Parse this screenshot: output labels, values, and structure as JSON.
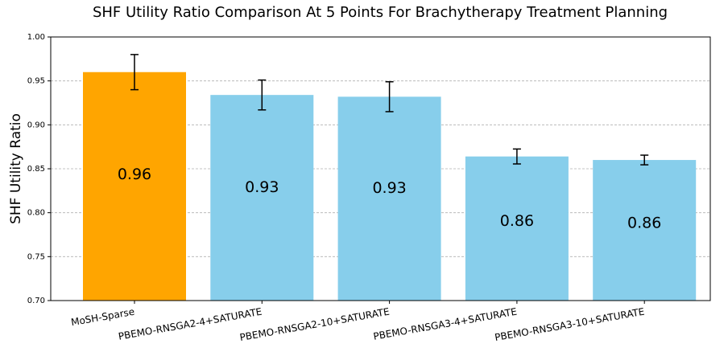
{
  "chart_data": {
    "type": "bar",
    "title": "SHF Utility Ratio Comparison At 5 Points For Brachytherapy Treatment Planning",
    "ylabel": "SHF Utility Ratio",
    "categories": [
      "MoSH-Sparse",
      "PBEMO-RNSGA2-4+SATURATE",
      "PBEMO-RNSGA2-10+SATURATE",
      "PBEMO-RNSGA3-4+SATURATE",
      "PBEMO-RNSGA3-10+SATURATE"
    ],
    "values": [
      0.96,
      0.934,
      0.932,
      0.864,
      0.86
    ],
    "value_labels": [
      "0.96",
      "0.93",
      "0.93",
      "0.86",
      "0.86"
    ],
    "errors": [
      0.02,
      0.017,
      0.017,
      0.0085,
      0.0055
    ],
    "colors": [
      "#ffa500",
      "#87ceeb",
      "#87ceeb",
      "#87ceeb",
      "#87ceeb"
    ],
    "ylim": [
      0.7,
      1.0
    ],
    "yticks": [
      {
        "value": 0.7,
        "label": "0.70"
      },
      {
        "value": 0.75,
        "label": "0.75"
      },
      {
        "value": 0.8,
        "label": "0.80"
      },
      {
        "value": 0.85,
        "label": "0.85"
      },
      {
        "value": 0.9,
        "label": "0.90"
      },
      {
        "value": 0.95,
        "label": "0.95"
      },
      {
        "value": 1.0,
        "label": "1.00"
      }
    ],
    "grid": true
  }
}
